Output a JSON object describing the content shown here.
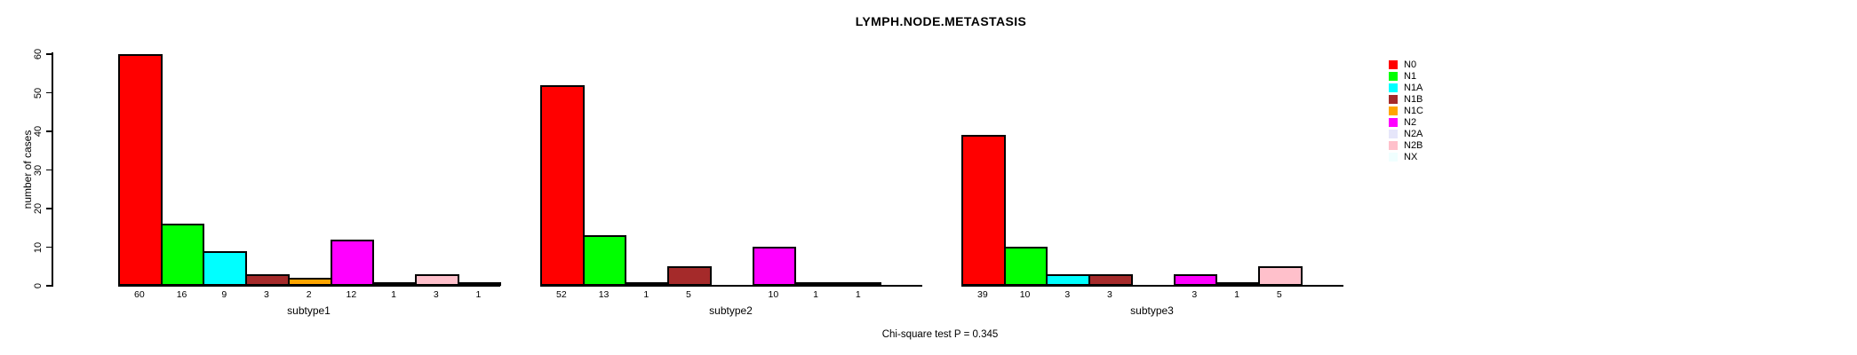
{
  "chart_data": {
    "type": "bar",
    "title": "LYMPH.NODE.METASTASIS",
    "ylabel": "number of cases",
    "xlabel": "",
    "ylim": [
      0,
      60
    ],
    "y_ticks": [
      0,
      10,
      20,
      30,
      40,
      50,
      60
    ],
    "grid": false,
    "legend_position": "right",
    "categories": [
      "N0",
      "N1",
      "N1A",
      "N1B",
      "N1C",
      "N2",
      "N2A",
      "N2B",
      "NX"
    ],
    "colors": [
      "#FF0000",
      "#00FF00",
      "#00FFFF",
      "#A52A2A",
      "#FFA500",
      "#FF00FF",
      "#E6E6FA",
      "#FFC0CB",
      "#F0FFFF"
    ],
    "groups": [
      {
        "label": "subtype1",
        "values": [
          60,
          16,
          9,
          3,
          2,
          12,
          1,
          3,
          1
        ]
      },
      {
        "label": "subtype2",
        "values": [
          52,
          13,
          1,
          5,
          null,
          10,
          1,
          1,
          null
        ]
      },
      {
        "label": "subtype3",
        "values": [
          39,
          10,
          3,
          3,
          null,
          3,
          1,
          5,
          null
        ]
      }
    ],
    "annotation": "Chi-square test P = 0.345"
  }
}
